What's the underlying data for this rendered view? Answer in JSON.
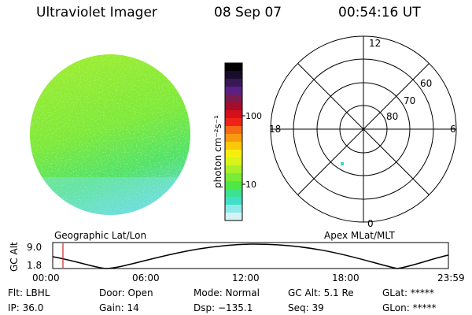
{
  "header": {
    "instrument": "Ultraviolet Imager",
    "date": "08 Sep 07",
    "time": "00:54:16 UT"
  },
  "colorbar": {
    "unit_label": "photon cm⁻²s⁻¹",
    "ticks": [
      "100",
      "10"
    ],
    "colors": [
      "#000000",
      "#1a0c2c",
      "#3a1856",
      "#5a2086",
      "#7b1c4e",
      "#a50d2a",
      "#d4101b",
      "#f0231a",
      "#f56a15",
      "#f89a10",
      "#fbc70b",
      "#f6ef0d",
      "#d8f41a",
      "#a7f12b",
      "#78ec36",
      "#4ee845",
      "#3ce294",
      "#40e0c8",
      "#8fe8ea",
      "#d5f3f5"
    ]
  },
  "polar_grid": {
    "mlt_labels": [
      "12",
      "18",
      "6",
      "0"
    ],
    "mlat_labels": [
      "60",
      "70",
      "80"
    ]
  },
  "strip": {
    "left_title": "Geographic Lat/Lon",
    "right_title": "Apex MLat/MLT",
    "axis_label": "GC Alt",
    "y_ticks": [
      "9.0",
      "1.8"
    ],
    "x_ticks": [
      "00:00",
      "06:00",
      "12:00",
      "18:00",
      "23:59"
    ],
    "marker_color": "#d02020"
  },
  "footer": {
    "filter": "Flt: LBHL",
    "ip": "IP: 36.0",
    "door": "Door: Open",
    "gain": "Gain: 14",
    "mode": "Mode: Normal",
    "dsp": "Dsp: −135.1",
    "gc_alt": "GC Alt: 5.1 Re",
    "seq": "Seq: 39",
    "glat": "GLat: *****",
    "glon": "GLon: *****"
  }
}
